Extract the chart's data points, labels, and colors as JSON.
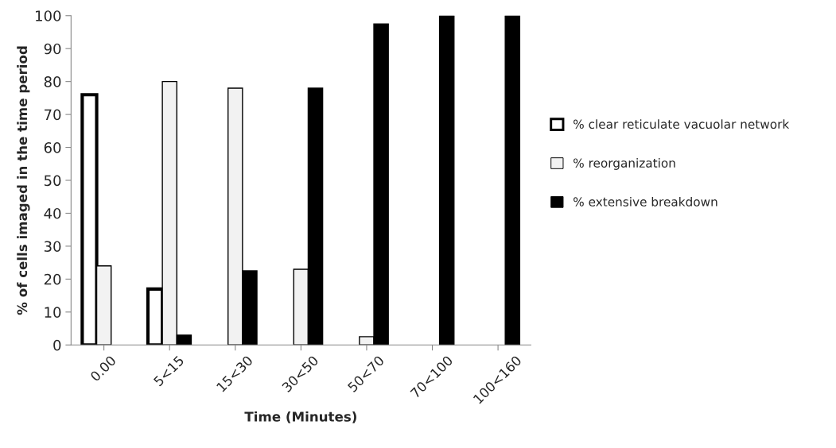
{
  "chart_data": {
    "type": "bar",
    "xlabel": "Time (Minutes)",
    "ylabel": "% of cells imaged in the time period",
    "categories": [
      "0.00",
      "5<15",
      "15<30",
      "30<50",
      "50<70",
      "70<100",
      "100<160"
    ],
    "series": [
      {
        "name": "% clear reticulate vacuolar network",
        "color": "#ffffff",
        "values": [
          76,
          17,
          null,
          null,
          null,
          null,
          null
        ]
      },
      {
        "name": "% reorganization",
        "color": "#f2f2f2",
        "values": [
          24,
          80,
          78,
          23,
          2.5,
          null,
          null
        ]
      },
      {
        "name": "% extensive breakdown",
        "color": "#000000",
        "values": [
          null,
          3,
          22.5,
          78,
          97.5,
          100,
          100
        ]
      }
    ],
    "ylim": [
      0,
      100
    ],
    "yticks": [
      0,
      10,
      20,
      30,
      40,
      50,
      60,
      70,
      80,
      90,
      100
    ],
    "grid": false,
    "legend": "right"
  }
}
